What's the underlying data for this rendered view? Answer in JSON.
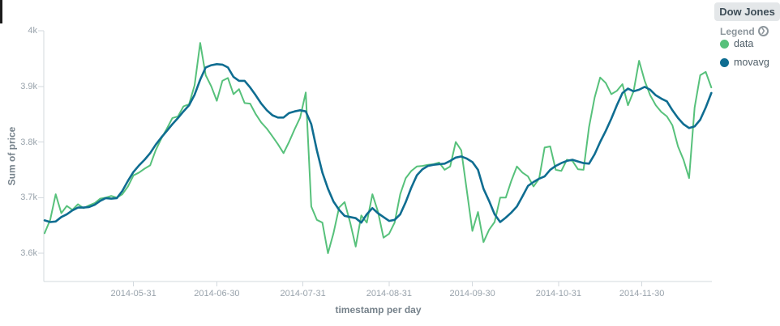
{
  "legend": {
    "title": "Dow Jones",
    "toggle_label": "Legend",
    "items": [
      {
        "label": "data",
        "color": "#57c17b"
      },
      {
        "label": "movavg",
        "color": "#0f6d91"
      }
    ]
  },
  "chart_data": {
    "type": "line",
    "title": "Dow Jones",
    "xlabel": "timestamp per day",
    "ylabel": "Sum of price",
    "x_unit": "date",
    "start_date": "2014-04-29",
    "interval_days": 2,
    "ylim": [
      3549,
      4000
    ],
    "grid": false,
    "legend_position": "right",
    "x_ticks": [
      {
        "label": "2014-05-31",
        "day": 32
      },
      {
        "label": "2014-06-30",
        "day": 62
      },
      {
        "label": "2014-07-31",
        "day": 93
      },
      {
        "label": "2014-08-31",
        "day": 124
      },
      {
        "label": "2014-09-30",
        "day": 154
      },
      {
        "label": "2014-10-31",
        "day": 185
      },
      {
        "label": "2014-11-30",
        "day": 215
      }
    ],
    "y_ticks": [
      {
        "label": "4k",
        "value": 4000
      },
      {
        "label": "3.9k",
        "value": 3900
      },
      {
        "label": "3.8k",
        "value": 3800
      },
      {
        "label": "3.7k",
        "value": 3700
      },
      {
        "label": "3.6k",
        "value": 3600
      }
    ],
    "series": [
      {
        "name": "data",
        "color": "#57c17b",
        "stroke_width": 2,
        "values": [
          3636,
          3660,
          3706,
          3672,
          3685,
          3678,
          3688,
          3681,
          3686,
          3690,
          3698,
          3700,
          3703,
          3700,
          3706,
          3720,
          3740,
          3745,
          3752,
          3758,
          3785,
          3806,
          3824,
          3843,
          3846,
          3864,
          3868,
          3902,
          3978,
          3920,
          3900,
          3874,
          3910,
          3915,
          3886,
          3895,
          3870,
          3869,
          3850,
          3835,
          3824,
          3810,
          3796,
          3780,
          3800,
          3823,
          3844,
          3889,
          3684,
          3660,
          3655,
          3600,
          3636,
          3682,
          3692,
          3655,
          3612,
          3668,
          3655,
          3706,
          3675,
          3628,
          3635,
          3655,
          3706,
          3735,
          3748,
          3756,
          3757,
          3759,
          3760,
          3763,
          3750,
          3756,
          3800,
          3785,
          3712,
          3640,
          3674,
          3620,
          3642,
          3656,
          3700,
          3700,
          3730,
          3756,
          3745,
          3738,
          3720,
          3734,
          3790,
          3792,
          3750,
          3748,
          3768,
          3766,
          3751,
          3750,
          3827,
          3880,
          3916,
          3906,
          3886,
          3892,
          3904,
          3866,
          3891,
          3946,
          3910,
          3884,
          3866,
          3854,
          3846,
          3830,
          3792,
          3768,
          3735,
          3862,
          3920,
          3926,
          3898
        ]
      },
      {
        "name": "movavg",
        "color": "#0f6d91",
        "stroke_width": 2.6,
        "values": [
          3659,
          3656,
          3657,
          3665,
          3670,
          3677,
          3682,
          3682,
          3683,
          3687,
          3694,
          3699,
          3698,
          3699,
          3712,
          3730,
          3746,
          3758,
          3768,
          3780,
          3795,
          3808,
          3820,
          3832,
          3843,
          3855,
          3866,
          3885,
          3912,
          3934,
          3938,
          3940,
          3939,
          3934,
          3917,
          3910,
          3910,
          3898,
          3884,
          3869,
          3857,
          3848,
          3844,
          3844,
          3852,
          3855,
          3857,
          3855,
          3832,
          3785,
          3745,
          3716,
          3693,
          3678,
          3667,
          3665,
          3663,
          3655,
          3670,
          3681,
          3672,
          3665,
          3658,
          3660,
          3670,
          3692,
          3718,
          3740,
          3751,
          3757,
          3759,
          3760,
          3761,
          3766,
          3772,
          3774,
          3770,
          3764,
          3750,
          3716,
          3694,
          3670,
          3656,
          3664,
          3673,
          3684,
          3702,
          3721,
          3728,
          3734,
          3738,
          3750,
          3757,
          3762,
          3766,
          3768,
          3765,
          3762,
          3761,
          3778,
          3800,
          3820,
          3842,
          3866,
          3888,
          3896,
          3891,
          3894,
          3899,
          3894,
          3884,
          3878,
          3873,
          3857,
          3843,
          3832,
          3825,
          3828,
          3840,
          3862,
          3888
        ]
      }
    ]
  }
}
